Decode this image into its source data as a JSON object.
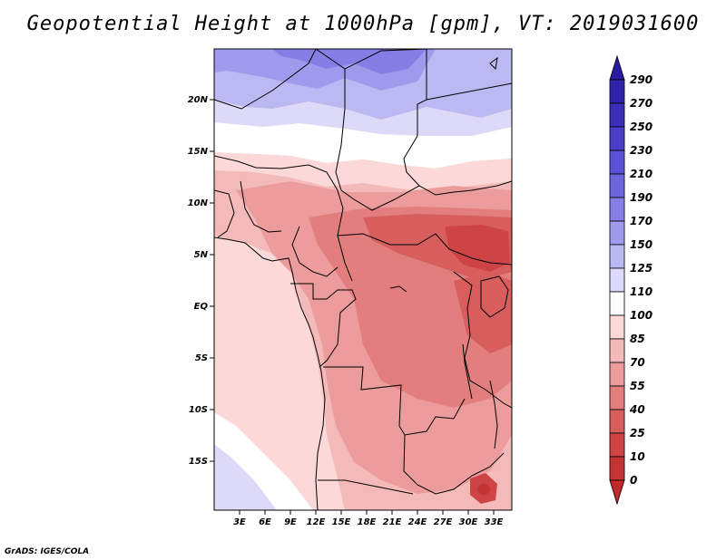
{
  "title": "Geopotential Height at 1000hPa [gpm], VT: 2019031600",
  "credit": "GrADS: IGES/COLA",
  "map": {
    "region": "Central Africa",
    "lat_labels": [
      "20N",
      "15N",
      "10N",
      "5N",
      "EQ",
      "5S",
      "10S",
      "15S"
    ],
    "lon_labels": [
      "3E",
      "6E",
      "9E",
      "12E",
      "15E",
      "18E",
      "21E",
      "24E",
      "27E",
      "30E",
      "33E"
    ]
  },
  "colorbar": {
    "levels": [
      "290",
      "270",
      "250",
      "230",
      "210",
      "190",
      "170",
      "150",
      "125",
      "110",
      "100",
      "85",
      "70",
      "55",
      "40",
      "25",
      "10",
      "0"
    ],
    "colors": {
      "top_arrow": "#2a1aa0",
      "bottom_arrow": "#c02a2a",
      "c_290": "#2e22a8",
      "c_270": "#3a2eb8",
      "c_250": "#4a3ec8",
      "c_230": "#5a50d4",
      "c_210": "#6e66dc",
      "c_190": "#857ee4",
      "c_170": "#a09aec",
      "c_150": "#bcb8f2",
      "c_125": "#dcdaf8",
      "c_110": "#ffffff",
      "c_100": "#fcd8d8",
      "c_85": "#f4baba",
      "c_70": "#ec9c9c",
      "c_55": "#e27e7e",
      "c_40": "#d85e5e",
      "c_25": "#ce4444",
      "c_10": "#c43434"
    }
  }
}
